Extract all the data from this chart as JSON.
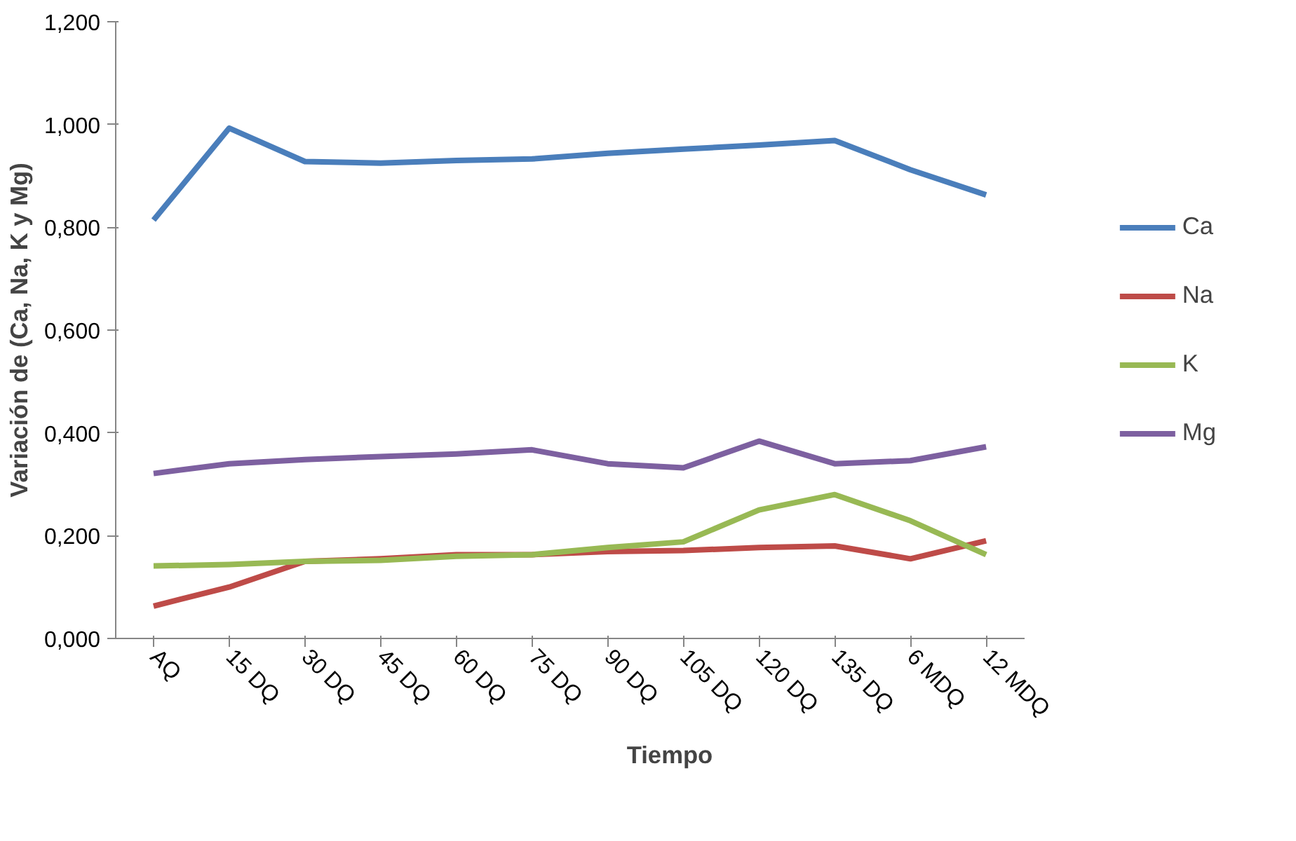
{
  "chart_data": {
    "type": "line",
    "xlabel": "Tiempo",
    "ylabel": "Variación de (Ca, Na, K y Mg)",
    "categories": [
      "AQ",
      "15 DQ",
      "30 DQ",
      "45 DQ",
      "60 DQ",
      "75 DQ",
      "90 DQ",
      "105 DQ",
      "120 DQ",
      "135 DQ",
      "6 MDQ",
      "12 MDQ"
    ],
    "series": [
      {
        "name": "Ca",
        "color": "#4a7ebb",
        "values": [
          0.814,
          0.993,
          0.928,
          0.925,
          0.93,
          0.933,
          0.944,
          0.952,
          0.96,
          0.969,
          0.912,
          0.863
        ]
      },
      {
        "name": "Na",
        "color": "#be4b48",
        "values": [
          0.063,
          0.1,
          0.15,
          0.155,
          0.163,
          0.163,
          0.169,
          0.171,
          0.177,
          0.18,
          0.155,
          0.19
        ]
      },
      {
        "name": "K",
        "color": "#98b954",
        "values": [
          0.141,
          0.144,
          0.15,
          0.152,
          0.16,
          0.163,
          0.177,
          0.188,
          0.25,
          0.28,
          0.229,
          0.163
        ]
      },
      {
        "name": "Mg",
        "color": "#7d60a0",
        "values": [
          0.321,
          0.34,
          0.348,
          0.354,
          0.359,
          0.367,
          0.34,
          0.332,
          0.384,
          0.34,
          0.346,
          0.373
        ]
      }
    ],
    "ylim": [
      0,
      1.2
    ],
    "yticks": [
      {
        "value": 0,
        "label": "0,000"
      },
      {
        "value": 0.2,
        "label": "0,200"
      },
      {
        "value": 0.4,
        "label": "0,400"
      },
      {
        "value": 0.6,
        "label": "0,600"
      },
      {
        "value": 0.8,
        "label": "0,800"
      },
      {
        "value": 1.0,
        "label": "1,000"
      },
      {
        "value": 1.2,
        "label": "1,200"
      }
    ],
    "grid": false,
    "legend": "right",
    "marker": "none",
    "line_style": "solid"
  }
}
